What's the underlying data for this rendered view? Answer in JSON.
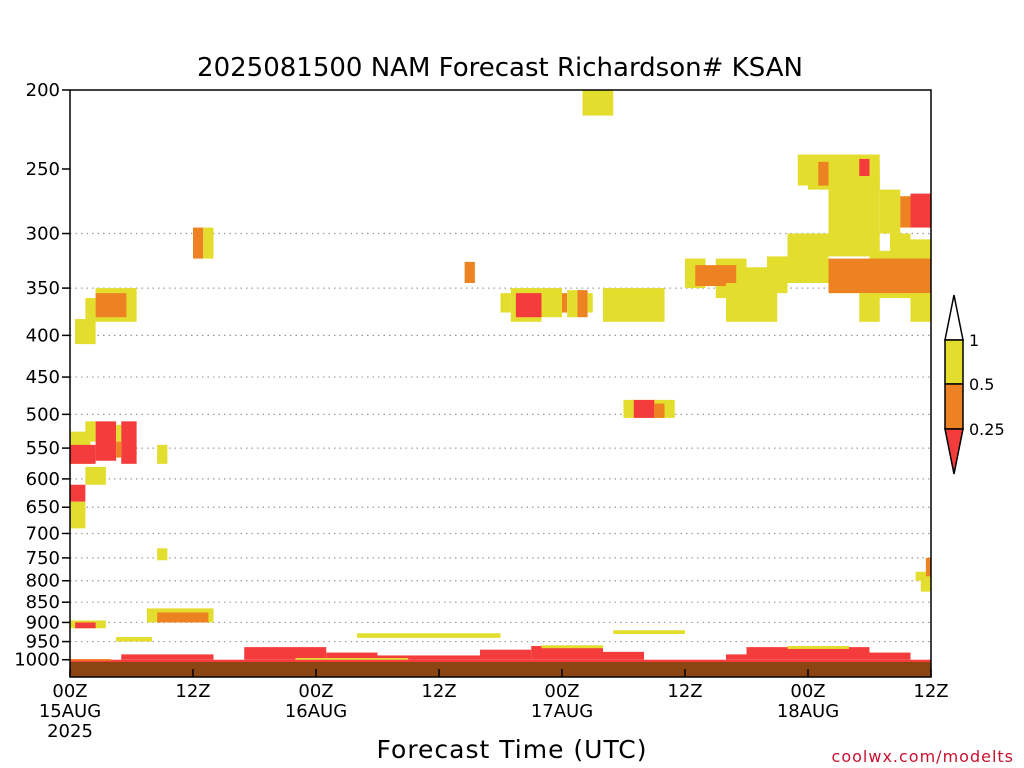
{
  "chart_data": {
    "type": "heatmap",
    "title": "2025081500 NAM Forecast Richardson# KSAN",
    "xlabel": "Forecast Time (UTC)",
    "ylabel": "",
    "y_axis": {
      "scale": "log",
      "reversed": true,
      "range": [
        1050,
        200
      ],
      "unit": "hPa",
      "ticks": [
        "200",
        "250",
        "300",
        "350",
        "400",
        "450",
        "500",
        "550",
        "600",
        "650",
        "700",
        "750",
        "800",
        "850",
        "900",
        "950",
        "1000"
      ]
    },
    "x_axis": {
      "unit": "hours",
      "range": [
        0,
        84
      ],
      "ticks": [
        {
          "hour": 0,
          "line1": "00Z",
          "line2": "15AUG",
          "line3": "2025"
        },
        {
          "hour": 12,
          "line1": "12Z",
          "line2": "",
          "line3": ""
        },
        {
          "hour": 24,
          "line1": "00Z",
          "line2": "16AUG",
          "line3": ""
        },
        {
          "hour": 36,
          "line1": "12Z",
          "line2": "",
          "line3": ""
        },
        {
          "hour": 48,
          "line1": "00Z",
          "line2": "17AUG",
          "line3": ""
        },
        {
          "hour": 60,
          "line1": "12Z",
          "line2": "",
          "line3": ""
        },
        {
          "hour": 72,
          "line1": "00Z",
          "line2": "18AUG",
          "line3": ""
        },
        {
          "hour": 84,
          "line1": "12Z",
          "line2": "",
          "line3": ""
        }
      ]
    },
    "grid": {
      "horizontal_dotted": true,
      "levels": [
        300,
        350,
        400,
        450,
        500,
        550,
        600,
        650,
        700,
        750,
        800,
        850,
        900,
        950
      ]
    },
    "legend": {
      "placement": "right",
      "labels": [
        "1",
        "0.5",
        "0.25"
      ],
      "bins": [
        {
          "range": ">1",
          "color": "#ffffff"
        },
        {
          "range": "0.5-1",
          "color": "#e3dd2e"
        },
        {
          "range": "0.25-0.5",
          "color": "#ed8223"
        },
        {
          "range": "<0.25",
          "color": "#f53c3c"
        }
      ]
    },
    "ground_color": "#8b4513",
    "cells": [
      {
        "h0": 50.0,
        "h1": 53.0,
        "p0": 200,
        "p1": 215,
        "cat": "y"
      },
      {
        "h0": 71.0,
        "h1": 72.0,
        "p0": 240,
        "p1": 262,
        "cat": "y"
      },
      {
        "h0": 72.0,
        "h1": 79.0,
        "p0": 240,
        "p1": 265,
        "cat": "y"
      },
      {
        "h0": 73.0,
        "h1": 74.0,
        "p0": 245,
        "p1": 262,
        "cat": "o"
      },
      {
        "h0": 77.0,
        "h1": 78.0,
        "p0": 243,
        "p1": 258,
        "cat": "r"
      },
      {
        "h0": 78.0,
        "h1": 79.0,
        "p0": 248,
        "p1": 262,
        "cat": "y"
      },
      {
        "h0": 74.0,
        "h1": 79.0,
        "p0": 255,
        "p1": 320,
        "cat": "y"
      },
      {
        "h0": 79.0,
        "h1": 81.0,
        "p0": 265,
        "p1": 300,
        "cat": "y"
      },
      {
        "h0": 81.0,
        "h1": 82.0,
        "p0": 270,
        "p1": 295,
        "cat": "o"
      },
      {
        "h0": 82.0,
        "h1": 84.0,
        "p0": 268,
        "p1": 295,
        "cat": "r"
      },
      {
        "h0": 80.0,
        "h1": 82.0,
        "p0": 300,
        "p1": 330,
        "cat": "y"
      },
      {
        "h0": 82.0,
        "h1": 84.0,
        "p0": 305,
        "p1": 340,
        "cat": "y"
      },
      {
        "h0": 70.0,
        "h1": 74.0,
        "p0": 300,
        "p1": 345,
        "cat": "y"
      },
      {
        "h0": 68.0,
        "h1": 70.0,
        "p0": 320,
        "p1": 355,
        "cat": "y"
      },
      {
        "h0": 66.0,
        "h1": 68.0,
        "p0": 330,
        "p1": 355,
        "cat": "y"
      },
      {
        "h0": 63.0,
        "h1": 66.0,
        "p0": 322,
        "p1": 360,
        "cat": "y"
      },
      {
        "h0": 62.0,
        "h1": 63.0,
        "p0": 332,
        "p1": 345,
        "cat": "y"
      },
      {
        "h0": 60.0,
        "h1": 62.0,
        "p0": 322,
        "p1": 350,
        "cat": "y"
      },
      {
        "h0": 61.0,
        "h1": 65.0,
        "p0": 328,
        "p1": 348,
        "cat": "o"
      },
      {
        "h0": 74.0,
        "h1": 78.0,
        "p0": 325,
        "p1": 355,
        "cat": "y"
      },
      {
        "h0": 78.0,
        "h1": 84.0,
        "p0": 315,
        "p1": 360,
        "cat": "y"
      },
      {
        "h0": 74.0,
        "h1": 84.0,
        "p0": 322,
        "p1": 355,
        "cat": "o"
      },
      {
        "h0": 64.0,
        "h1": 69.0,
        "p0": 345,
        "p1": 385,
        "cat": "y"
      },
      {
        "h0": 77.0,
        "h1": 79.0,
        "p0": 355,
        "p1": 385,
        "cat": "y"
      },
      {
        "h0": 82.0,
        "h1": 84.0,
        "p0": 355,
        "p1": 385,
        "cat": "y"
      },
      {
        "h0": 38.5,
        "h1": 39.5,
        "p0": 325,
        "p1": 345,
        "cat": "o"
      },
      {
        "h0": 42.0,
        "h1": 43.0,
        "p0": 355,
        "p1": 375,
        "cat": "y"
      },
      {
        "h0": 43.0,
        "h1": 46.0,
        "p0": 350,
        "p1": 385,
        "cat": "y"
      },
      {
        "h0": 43.5,
        "h1": 46.0,
        "p0": 355,
        "p1": 380,
        "cat": "r"
      },
      {
        "h0": 46.0,
        "h1": 48.0,
        "p0": 350,
        "p1": 380,
        "cat": "y"
      },
      {
        "h0": 48.0,
        "h1": 48.5,
        "p0": 355,
        "p1": 375,
        "cat": "o"
      },
      {
        "h0": 48.5,
        "h1": 49.5,
        "p0": 352,
        "p1": 380,
        "cat": "y"
      },
      {
        "h0": 49.5,
        "h1": 50.5,
        "p0": 352,
        "p1": 380,
        "cat": "o"
      },
      {
        "h0": 50.5,
        "h1": 51.0,
        "p0": 355,
        "p1": 375,
        "cat": "y"
      },
      {
        "h0": 52.0,
        "h1": 58.0,
        "p0": 350,
        "p1": 385,
        "cat": "y"
      },
      {
        "h0": 12.0,
        "h1": 13.0,
        "p0": 295,
        "p1": 322,
        "cat": "o"
      },
      {
        "h0": 13.0,
        "h1": 14.0,
        "p0": 295,
        "p1": 322,
        "cat": "y"
      },
      {
        "h0": 1.5,
        "h1": 2.5,
        "p0": 360,
        "p1": 385,
        "cat": "y"
      },
      {
        "h0": 2.5,
        "h1": 6.5,
        "p0": 350,
        "p1": 385,
        "cat": "y"
      },
      {
        "h0": 2.5,
        "h1": 5.5,
        "p0": 355,
        "p1": 380,
        "cat": "o"
      },
      {
        "h0": 0.5,
        "h1": 2.5,
        "p0": 382,
        "p1": 410,
        "cat": "y"
      },
      {
        "h0": 54.0,
        "h1": 59.0,
        "p0": 480,
        "p1": 505,
        "cat": "y"
      },
      {
        "h0": 55.0,
        "h1": 57.0,
        "p0": 480,
        "p1": 505,
        "cat": "r"
      },
      {
        "h0": 57.0,
        "h1": 58.0,
        "p0": 485,
        "p1": 505,
        "cat": "o"
      },
      {
        "h0": 0.0,
        "h1": 2.0,
        "p0": 525,
        "p1": 575,
        "cat": "y"
      },
      {
        "h0": 1.5,
        "h1": 2.5,
        "p0": 510,
        "p1": 540,
        "cat": "y"
      },
      {
        "h0": 0.0,
        "h1": 2.5,
        "p0": 545,
        "p1": 575,
        "cat": "r"
      },
      {
        "h0": 2.5,
        "h1": 4.5,
        "p0": 510,
        "p1": 570,
        "cat": "r"
      },
      {
        "h0": 4.5,
        "h1": 5.0,
        "p0": 515,
        "p1": 540,
        "cat": "y"
      },
      {
        "h0": 5.0,
        "h1": 6.5,
        "p0": 510,
        "p1": 575,
        "cat": "r"
      },
      {
        "h0": 4.5,
        "h1": 5.0,
        "p0": 540,
        "p1": 565,
        "cat": "o"
      },
      {
        "h0": 8.5,
        "h1": 9.5,
        "p0": 545,
        "p1": 575,
        "cat": "y"
      },
      {
        "h0": 1.5,
        "h1": 3.5,
        "p0": 580,
        "p1": 610,
        "cat": "y"
      },
      {
        "h0": 0.0,
        "h1": 1.5,
        "p0": 610,
        "p1": 640,
        "cat": "r"
      },
      {
        "h0": 0.0,
        "h1": 1.5,
        "p0": 640,
        "p1": 690,
        "cat": "y"
      },
      {
        "h0": 8.5,
        "h1": 9.5,
        "p0": 730,
        "p1": 755,
        "cat": "y"
      },
      {
        "h0": 82.5,
        "h1": 84.0,
        "p0": 780,
        "p1": 800,
        "cat": "y"
      },
      {
        "h0": 83.5,
        "h1": 84.0,
        "p0": 750,
        "p1": 790,
        "cat": "o"
      },
      {
        "h0": 83.0,
        "h1": 84.0,
        "p0": 800,
        "p1": 825,
        "cat": "y"
      },
      {
        "h0": 7.5,
        "h1": 14.0,
        "p0": 865,
        "p1": 900,
        "cat": "y"
      },
      {
        "h0": 8.5,
        "h1": 13.5,
        "p0": 875,
        "p1": 900,
        "cat": "o"
      },
      {
        "h0": 0.0,
        "h1": 3.5,
        "p0": 895,
        "p1": 915,
        "cat": "y"
      },
      {
        "h0": 0.5,
        "h1": 2.5,
        "p0": 900,
        "p1": 915,
        "cat": "r"
      },
      {
        "h0": 28.0,
        "h1": 42.0,
        "p0": 928,
        "p1": 940,
        "cat": "y"
      },
      {
        "h0": 4.5,
        "h1": 8.0,
        "p0": 938,
        "p1": 950,
        "cat": "y"
      },
      {
        "h0": 53.0,
        "h1": 60.0,
        "p0": 920,
        "p1": 930,
        "cat": "y"
      },
      {
        "h0": 0.0,
        "h1": 84.0,
        "p0": 1000,
        "p1": 1015,
        "cat": "r"
      },
      {
        "h0": 17.0,
        "h1": 25.0,
        "p0": 965,
        "p1": 1000,
        "cat": "r"
      },
      {
        "h0": 25.0,
        "h1": 30.0,
        "p0": 980,
        "p1": 1000,
        "cat": "r"
      },
      {
        "h0": 30.0,
        "h1": 40.0,
        "p0": 988,
        "p1": 1000,
        "cat": "r"
      },
      {
        "h0": 40.0,
        "h1": 45.0,
        "p0": 972,
        "p1": 1000,
        "cat": "r"
      },
      {
        "h0": 45.0,
        "h1": 52.0,
        "p0": 962,
        "p1": 1000,
        "cat": "r"
      },
      {
        "h0": 52.0,
        "h1": 56.0,
        "p0": 978,
        "p1": 1000,
        "cat": "r"
      },
      {
        "h0": 64.0,
        "h1": 66.0,
        "p0": 985,
        "p1": 1000,
        "cat": "r"
      },
      {
        "h0": 66.0,
        "h1": 78.0,
        "p0": 965,
        "p1": 1000,
        "cat": "r"
      },
      {
        "h0": 78.0,
        "h1": 82.0,
        "p0": 980,
        "p1": 1000,
        "cat": "r"
      },
      {
        "h0": 5.0,
        "h1": 14.0,
        "p0": 985,
        "p1": 1000,
        "cat": "r"
      },
      {
        "h0": 46.0,
        "h1": 52.0,
        "p0": 960,
        "p1": 968,
        "cat": "y"
      },
      {
        "h0": 70.0,
        "h1": 76.0,
        "p0": 962,
        "p1": 970,
        "cat": "y"
      },
      {
        "h0": 22.0,
        "h1": 33.0,
        "p0": 995,
        "p1": 1000,
        "cat": "y"
      },
      {
        "h0": 0.0,
        "h1": 4.0,
        "p0": 998,
        "p1": 1003,
        "cat": "o"
      }
    ]
  }
}
